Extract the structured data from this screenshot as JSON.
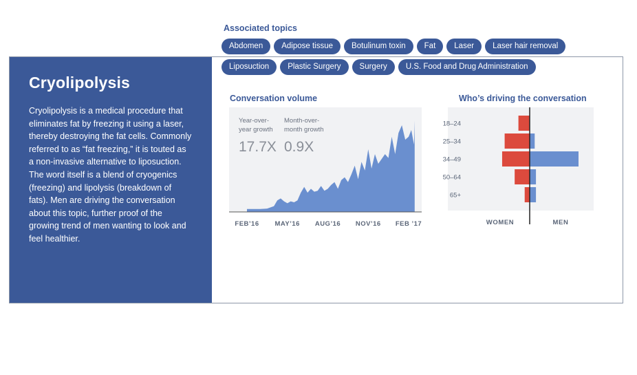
{
  "panel": {
    "title": "Cryolipolysis",
    "description": "Cryolipolysis is a medical procedure that eliminates fat by freezing it using a laser, thereby destroying the fat cells. Commonly referred to as “fat freezing,” it is touted as a non-invasive alternative to liposuction. The word itself is a blend of cryogenics (freezing) and lipolysis (breakdown of fats). Men are driving the conversation about this topic, further proof of the growing trend of men wanting to look and feel healthier."
  },
  "topics": {
    "title": "Associated topics",
    "row1": [
      "Abdomen",
      "Adipose tissue",
      "Botulinum toxin",
      "Fat",
      "Laser",
      "Laser hair removal"
    ],
    "row2": [
      "Liposuction",
      "Plastic Surgery",
      "Surgery",
      "U.S. Food and Drug Administration"
    ]
  },
  "colors": {
    "brand": "#3b5998",
    "area": "#6a8fcf",
    "women": "#dc4a3d",
    "men": "#6a8fcf",
    "chart_bg": "#f1f2f4"
  },
  "chart_data": [
    {
      "type": "area",
      "title": "Conversation volume",
      "x_tick_labels": [
        "FEB’16",
        "MAY’16",
        "AUG’16",
        "NOV’16",
        "FEB ’17"
      ],
      "x_tick_positions": [
        0,
        3,
        6,
        9,
        12
      ],
      "stats": [
        {
          "label_line1": "Year-over-",
          "label_line2": "year growth",
          "value": "17.7X"
        },
        {
          "label_line1": "Month-over-",
          "label_line2": "month growth",
          "value": "0.9X"
        }
      ],
      "x": [
        0,
        0.5,
        1,
        1.5,
        2,
        2.25,
        2.5,
        2.75,
        3,
        3.25,
        3.5,
        3.75,
        4,
        4.25,
        4.5,
        4.75,
        5,
        5.25,
        5.5,
        5.75,
        6,
        6.25,
        6.5,
        6.75,
        7,
        7.25,
        7.5,
        7.75,
        8,
        8.25,
        8.5,
        8.75,
        9,
        9.25,
        9.5,
        9.75,
        10,
        10.25,
        10.5,
        10.75,
        11,
        11.25,
        11.5,
        11.75,
        12,
        12.2,
        12.4,
        12.45
      ],
      "y": [
        3,
        3,
        3,
        3.5,
        6,
        12,
        14,
        11,
        9,
        11,
        10,
        12,
        20,
        26,
        20,
        24,
        21,
        22,
        27,
        22,
        24,
        28,
        31,
        24,
        33,
        36,
        31,
        39,
        48,
        34,
        52,
        43,
        65,
        45,
        60,
        50,
        55,
        60,
        56,
        78,
        60,
        82,
        90,
        75,
        78,
        85,
        70,
        95
      ],
      "ylim": [
        0,
        100
      ]
    },
    {
      "type": "bar",
      "title": "Who’s driving the conversation",
      "categories": [
        "18–24",
        "25–34",
        "34–49",
        "50–64",
        "65+"
      ],
      "series": [
        {
          "name": "WOMEN",
          "values": [
            9,
            20,
            22,
            12,
            4
          ]
        },
        {
          "name": "MEN",
          "values": [
            0,
            4,
            39,
            5,
            5
          ]
        }
      ]
    }
  ]
}
